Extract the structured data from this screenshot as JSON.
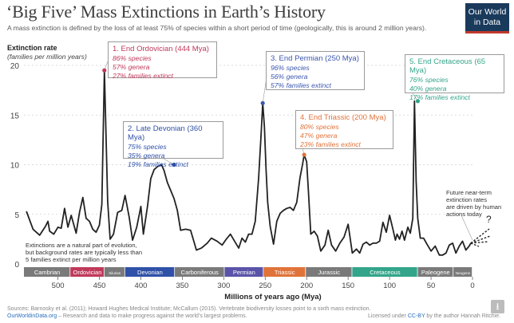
{
  "title": "‘Big Five’ Mass Extinctions in Earth’s History",
  "subtitle": "A mass extinction is defined by the loss of at least 75% of species within a short period of time (geologically, this is around 2 million years).",
  "logo": {
    "line1": "Our World",
    "line2": "in Data"
  },
  "colors": {
    "line": "#222222",
    "ordovician": "#c0395a",
    "devonian": "#2f51a8",
    "permian": "#3b57b0",
    "triassic": "#e0733a",
    "cretaceous": "#33a58a",
    "axis_bar": "#7a7a7a"
  },
  "chart_data": {
    "type": "line",
    "title": "‘Big Five’ Mass Extinctions in Earth’s History",
    "ylabel": "Extinction rate",
    "ylabel_units": "(families per million years)",
    "xlabel": "Millions of years ago (Mya)",
    "x_reversed": true,
    "xlim": [
      540,
      0
    ],
    "ylim": [
      0,
      20
    ],
    "y_ticks": [
      0,
      5,
      10,
      15,
      20
    ],
    "x_ticks": [
      500,
      450,
      400,
      350,
      300,
      250,
      200,
      150,
      100,
      50,
      0
    ],
    "grid": "horizontal dotted",
    "series": [
      {
        "x": [
          538,
          530,
          522,
          515,
          512,
          510,
          505,
          500,
          496,
          492,
          488,
          484,
          478,
          474,
          470,
          466,
          462,
          458,
          454,
          450,
          447,
          444,
          440,
          437,
          433,
          428,
          423,
          419,
          414,
          410,
          405,
          400,
          397,
          392,
          388,
          384,
          380,
          375,
          372,
          368,
          364,
          360,
          356,
          352,
          346,
          340,
          333,
          327,
          320,
          315,
          308,
          302,
          297,
          292,
          287,
          282,
          278,
          274,
          270,
          266,
          262,
          258,
          255,
          253,
          251,
          249,
          247,
          244,
          240,
          236,
          232,
          228,
          224,
          220,
          216,
          212,
          208,
          205,
          203,
          200,
          198,
          195,
          191,
          187,
          183,
          178,
          174,
          170,
          165,
          160,
          155,
          150,
          145,
          140,
          136,
          132,
          128,
          124,
          120,
          116,
          112,
          108,
          104,
          100,
          96,
          93,
          91,
          88,
          85,
          82,
          78,
          75,
          72,
          70,
          68,
          66,
          63,
          59,
          55,
          50,
          45,
          40,
          36,
          32,
          28,
          24,
          20,
          16,
          12,
          8,
          4,
          2
        ],
        "y": [
          5.3,
          3.5,
          2.9,
          3.8,
          4.3,
          3.3,
          3.0,
          3.7,
          3.6,
          5.6,
          3.7,
          4.9,
          3.1,
          5.2,
          6.7,
          4.6,
          4.3,
          3.5,
          3.2,
          3.9,
          6.0,
          19.5,
          6.3,
          2.5,
          3.0,
          5.2,
          5.4,
          6.9,
          4.7,
          2.4,
          3.7,
          5.8,
          3.0,
          5.8,
          8.6,
          9.5,
          9.8,
          10.0,
          9.4,
          8.2,
          7.4,
          6.6,
          5.4,
          3.4,
          3.5,
          3.4,
          1.4,
          1.6,
          2.1,
          2.6,
          2.3,
          1.9,
          2.5,
          3.0,
          2.3,
          1.6,
          2.6,
          2.2,
          3.0,
          3.0,
          4.3,
          8.6,
          13.0,
          16.2,
          13.8,
          9.6,
          6.2,
          3.8,
          2.0,
          4.3,
          5.1,
          5.4,
          5.6,
          5.7,
          5.4,
          6.2,
          8.7,
          10.0,
          11.0,
          10.3,
          7.5,
          3.0,
          3.3,
          2.8,
          1.3,
          1.9,
          3.4,
          1.9,
          1.3,
          2.1,
          2.7,
          4.0,
          1.1,
          1.5,
          1.1,
          2.0,
          2.2,
          1.9,
          2.1,
          2.1,
          2.3,
          4.2,
          3.2,
          4.9,
          3.5,
          2.4,
          3.0,
          2.5,
          3.3,
          2.4,
          3.7,
          3.1,
          4.6,
          16.4,
          8.3,
          4.6,
          2.6,
          2.6,
          2.0,
          1.3,
          1.8,
          0.9,
          0.9,
          1.1,
          1.9,
          2.1,
          1.1,
          1.8,
          2.3,
          1.4,
          1.8,
          2.1
        ]
      }
    ],
    "highlights": [
      {
        "x": 444,
        "y": 19.5,
        "color_key": "ordovician"
      },
      {
        "x": 360,
        "y": 10.0,
        "color_key": "devonian"
      },
      {
        "x": 253,
        "y": 16.2,
        "color_key": "permian"
      },
      {
        "x": 203,
        "y": 11.0,
        "color_key": "triassic"
      },
      {
        "x": 66,
        "y": 16.4,
        "color_key": "cretaceous"
      }
    ],
    "periods": [
      {
        "name": "Cambrian",
        "start": 541,
        "end": 485,
        "color": "#7a7a7a"
      },
      {
        "name": "Ordovician",
        "start": 485,
        "end": 444,
        "color": "#c0395a"
      },
      {
        "name": "Silurian",
        "start": 444,
        "end": 419,
        "color": "#7a7a7a"
      },
      {
        "name": "Devonian",
        "start": 419,
        "end": 359,
        "color": "#2f51a8"
      },
      {
        "name": "Carboniferous",
        "start": 359,
        "end": 299,
        "color": "#7a7a7a"
      },
      {
        "name": "Permian",
        "start": 299,
        "end": 252,
        "color": "#5a54a8"
      },
      {
        "name": "Triassic",
        "start": 252,
        "end": 201,
        "color": "#e0733a"
      },
      {
        "name": "Jurassic",
        "start": 201,
        "end": 145,
        "color": "#7a7a7a"
      },
      {
        "name": "Cretaceous",
        "start": 145,
        "end": 66,
        "color": "#33a58a"
      },
      {
        "name": "Paleogene",
        "start": 66,
        "end": 23,
        "color": "#7a7a7a"
      },
      {
        "name": "Neogene",
        "start": 23,
        "end": 0,
        "color": "#7a7a7a"
      }
    ]
  },
  "annotations": {
    "ordovician": {
      "heading": "1. End Ordovician (444 Mya)",
      "species": "86% species",
      "genera": "57% genera",
      "families": "27% families extinct"
    },
    "devonian": {
      "heading": "2. Late Devonian (360 Mya)",
      "species": "75% species",
      "genera": "35% genera",
      "families": "19% families extinct"
    },
    "permian": {
      "heading": "3. End Permian (250 Mya)",
      "species": "96% species",
      "genera": "56% genera",
      "families": "57% families extinct"
    },
    "triassic": {
      "heading": "4. End Triassic (200 Mya)",
      "species": "80% species",
      "genera": "47% genera",
      "families": "23% families extinct"
    },
    "cretaceous": {
      "heading": "5. End Cretaceous (65 Mya)",
      "species": "76% species",
      "genera": "40% genera",
      "families": "17% families extinct"
    }
  },
  "notes": {
    "background_line1": "Extinctions are a natural part of evolution,",
    "background_line2": "but background rates are typically less than",
    "background_line3": "5 families extinct per million years",
    "future_line1": "Future near-term",
    "future_line2": "extinction rates",
    "future_line3": "are driven by human",
    "future_line4": "actions today",
    "question": "?"
  },
  "footer": {
    "sources": "Sources: Barnosky et al. (2011); Howard Hughes Medical Institute; McCallum (2015). Vertebrate biodiversity losses point to a sixth mass extinction.",
    "owid_link": "OurWorldinData.org",
    "owid_tail": " – Research and data to make progress against the world’s largest problems.",
    "license_prefix": "Licensed under ",
    "license_link": "CC-BY",
    "license_tail": " by the author Hannah Ritchie."
  },
  "icons": {
    "download": "download-icon"
  }
}
